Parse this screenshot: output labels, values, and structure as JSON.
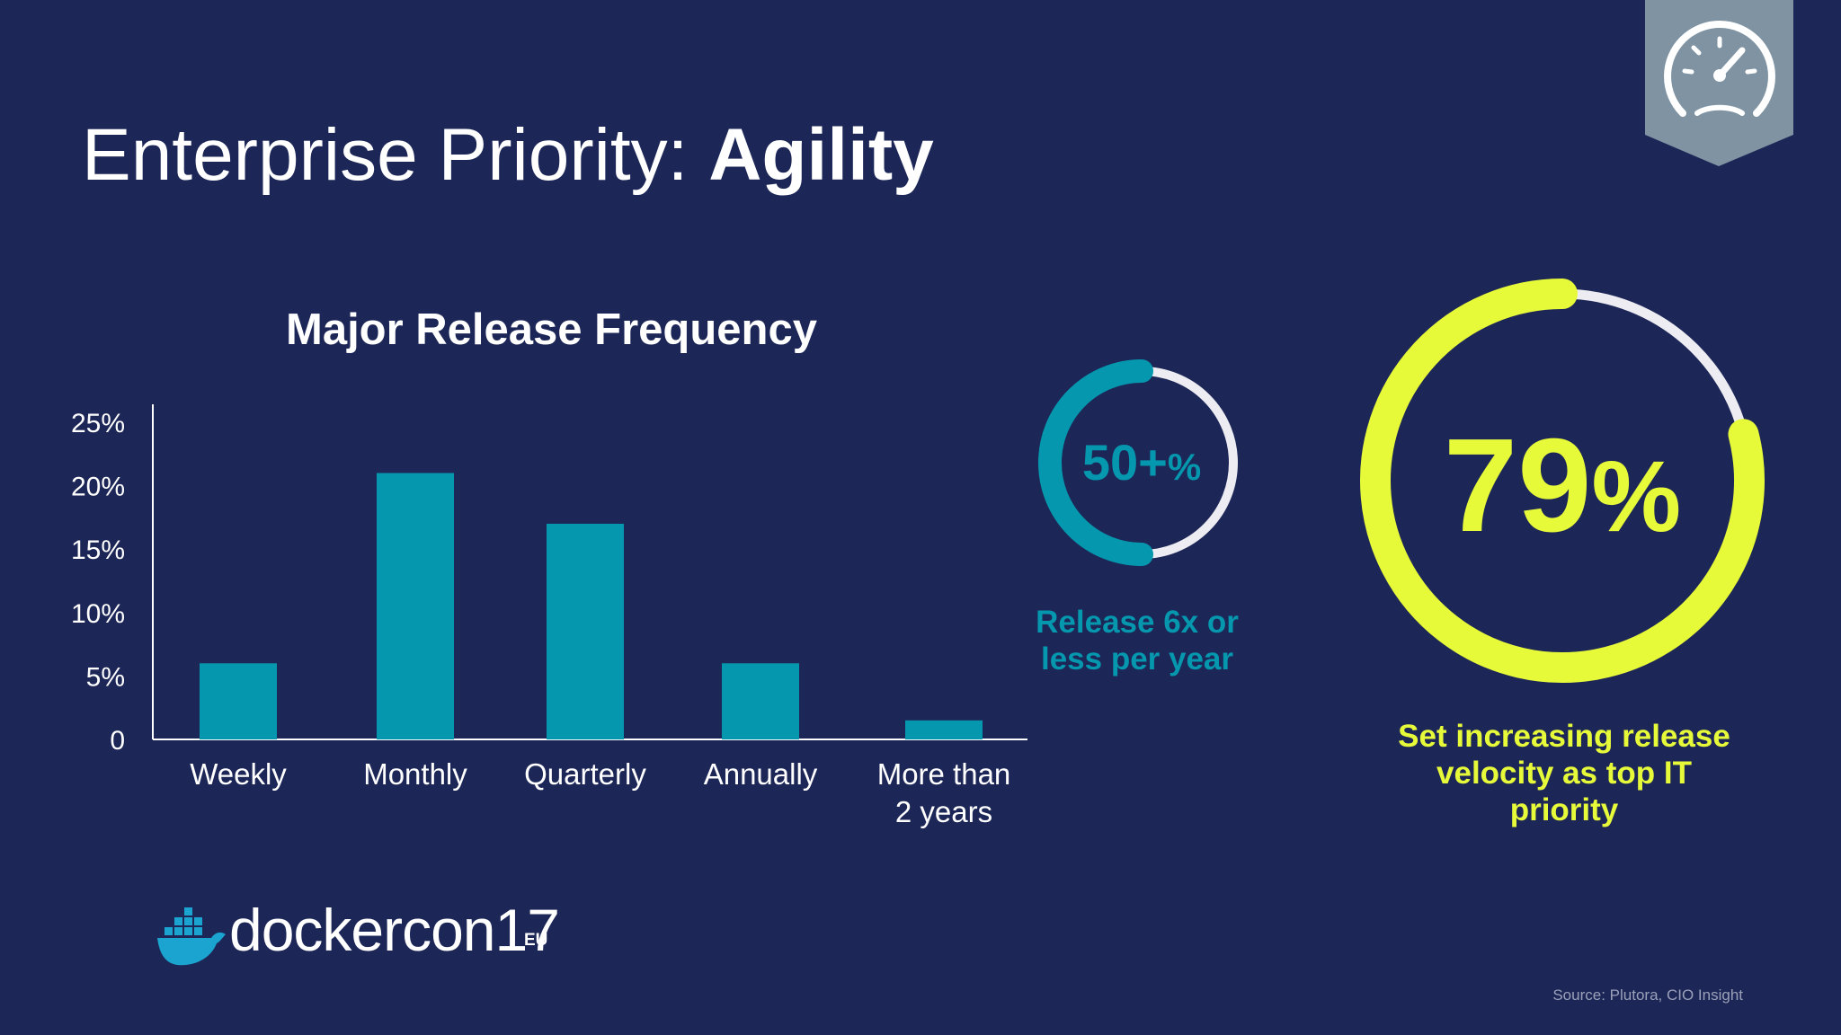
{
  "slide": {
    "title_regular": "Enterprise Priority: ",
    "title_bold": "Agility",
    "badge_icon": "speedometer-icon",
    "source": "Source: Plutora, CIO Insight",
    "logo_text": "dockercon17",
    "logo_suffix": "EU",
    "colors": {
      "background": "#1c2657",
      "teal": "#0597ae",
      "yellow": "#e7fa3a",
      "ring_track": "#ececf2",
      "badge": "#7f93a2"
    }
  },
  "chart_data": {
    "type": "bar",
    "title": "Major Release Frequency",
    "categories": [
      "Weekly",
      "Monthly",
      "Quarterly",
      "Annually",
      "More than\n2 years"
    ],
    "values": [
      6,
      21,
      17,
      6,
      1.5
    ],
    "ytick_labels": [
      "0",
      "5%",
      "10%",
      "15%",
      "20%",
      "25%"
    ],
    "ylim": [
      0,
      25
    ],
    "grid": false,
    "legend": "none"
  },
  "stats": [
    {
      "value": "50+",
      "unit": "%",
      "caption": "Release 6x or\nless per year",
      "fraction": 0.5
    },
    {
      "value": "79",
      "unit": "%",
      "caption": "Set increasing release\nvelocity as top IT\npriority",
      "fraction": 0.79
    }
  ]
}
